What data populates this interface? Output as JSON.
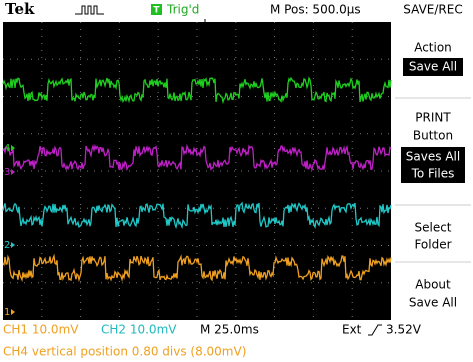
{
  "header": {
    "brand": "Tek",
    "trigger_status": "Trig'd",
    "position": "M Pos: 500.0µs",
    "menu_title": "SAVE/REC"
  },
  "menu": [
    {
      "label": [
        "Action"
      ],
      "value": [
        "Save All"
      ]
    },
    {
      "label": [
        "PRINT",
        "Button"
      ],
      "value": [
        "Saves All",
        "To Files"
      ]
    },
    {
      "label": [
        "Select",
        "Folder"
      ]
    },
    {
      "label": [
        "About",
        "Save All"
      ]
    }
  ],
  "channel_markers": [
    "4",
    "3",
    "2",
    "1"
  ],
  "status": {
    "ch1": "CH1 10.0mV",
    "ch2": "CH2 10.0mV",
    "timebase": "M 25.0ms",
    "trigger_source": "Ext",
    "trigger_level": "3.52V",
    "message": "CH4 vertical position 0.80 divs (8.00mV)"
  }
}
